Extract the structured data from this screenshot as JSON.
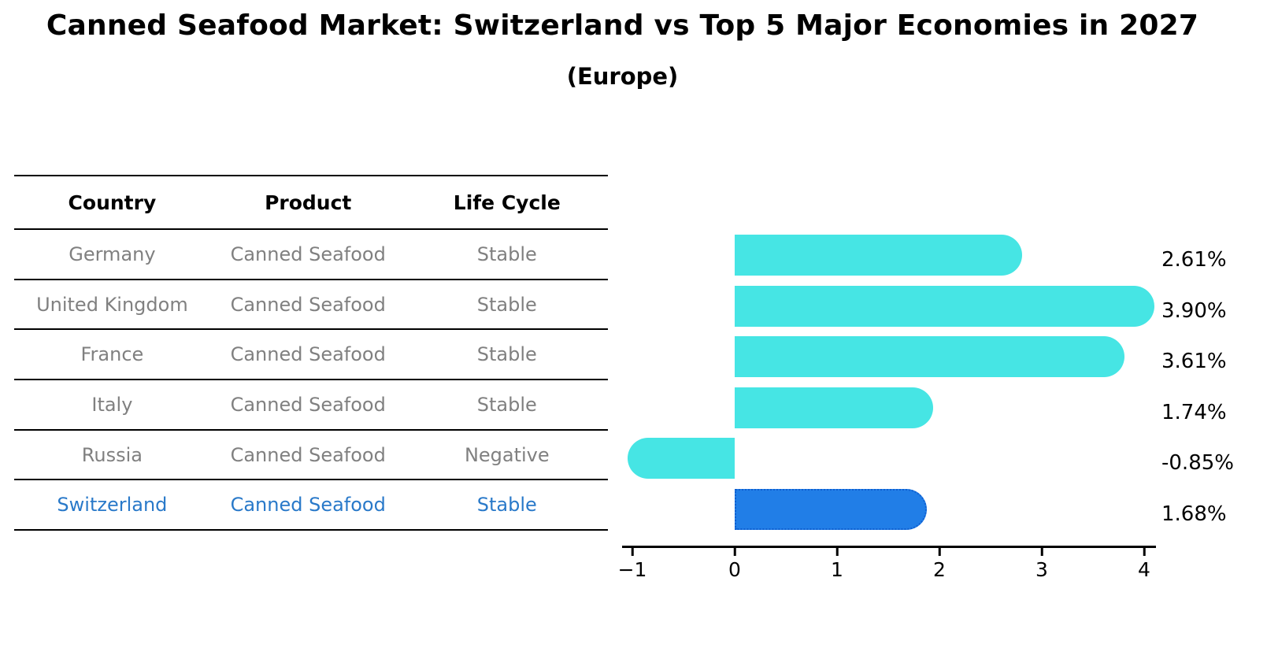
{
  "header": {
    "title": "Canned Seafood Market: Switzerland vs Top 5 Major Economies in 2027",
    "subtitle": "(Europe)"
  },
  "table": {
    "headers": [
      "Country",
      "Product",
      "Life Cycle"
    ],
    "rows": [
      {
        "country": "Germany",
        "product": "Canned Seafood",
        "life_cycle": "Stable",
        "highlight": false
      },
      {
        "country": "United Kingdom",
        "product": "Canned Seafood",
        "life_cycle": "Stable",
        "highlight": false
      },
      {
        "country": "France",
        "product": "Canned Seafood",
        "life_cycle": "Stable",
        "highlight": false
      },
      {
        "country": "Italy",
        "product": "Canned Seafood",
        "life_cycle": "Stable",
        "highlight": false
      },
      {
        "country": "Russia",
        "product": "Canned Seafood",
        "life_cycle": "Negative",
        "highlight": false
      },
      {
        "country": "Switzerland",
        "product": "Canned Seafood",
        "life_cycle": "Stable",
        "highlight": true
      }
    ]
  },
  "chart_data": {
    "type": "bar",
    "orientation": "horizontal",
    "title": "Canned Seafood Market: Switzerland vs Top 5 Major Economies in 2027",
    "subtitle": "(Europe)",
    "categories": [
      "Germany",
      "United Kingdom",
      "France",
      "Italy",
      "Russia",
      "Switzerland"
    ],
    "values": [
      2.61,
      3.9,
      3.61,
      1.74,
      -0.85,
      1.68
    ],
    "value_labels": [
      "2.61%",
      "3.90%",
      "3.61%",
      "1.74%",
      "-0.85%",
      "1.68%"
    ],
    "xlabel": "",
    "ylabel": "",
    "xlim": [
      -1.1,
      4.12
    ],
    "x_ticks": [
      -1,
      0,
      1,
      2,
      3,
      4
    ],
    "x_tick_labels": [
      "−1",
      "0",
      "1",
      "2",
      "3",
      "4"
    ],
    "grid": false,
    "legend": false,
    "highlight_category": "Switzerland",
    "colors": {
      "bar": "#46E5E4",
      "highlight_bar": "#217EE7",
      "highlight_border": "#0F5FD0",
      "row_text": "#808080",
      "highlight_text": "#2979C9",
      "axis": "#000000"
    }
  }
}
